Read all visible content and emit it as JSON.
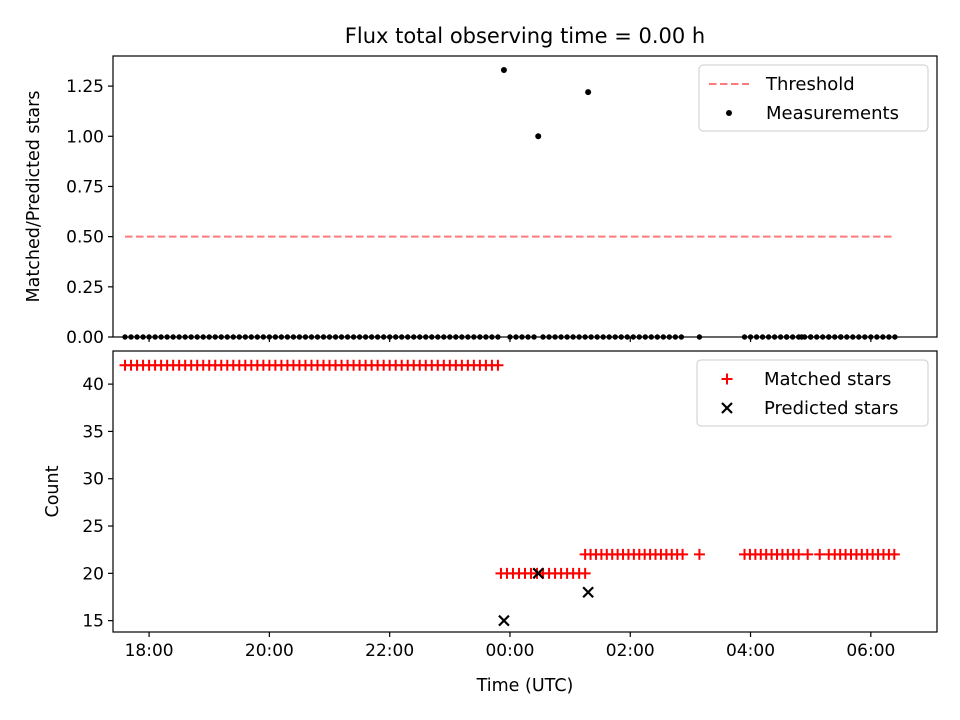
{
  "chart_data": [
    {
      "type": "scatter",
      "title": "Flux total observing time = 0.00 h",
      "xlabel": "",
      "ylabel": "Matched/Predicted stars",
      "xlim": [
        -6.6,
        7.1
      ],
      "ylim": [
        0,
        1.4
      ],
      "xticks": [
        -6,
        -4,
        -2,
        0,
        2,
        4,
        6
      ],
      "yticks": [
        0,
        0.25,
        0.5,
        0.75,
        1.0,
        1.25
      ],
      "ytick_labels": [
        "0.00",
        "0.25",
        "0.50",
        "0.75",
        "1.00",
        "1.25"
      ],
      "grid": false,
      "legend_position": "upper right",
      "series": [
        {
          "name": "Threshold",
          "style": "dashed-line",
          "color": "#ff7a7a",
          "x": [
            -6.4,
            6.4
          ],
          "y": [
            0.5,
            0.5
          ]
        },
        {
          "name": "Measurements",
          "style": "dot",
          "color": "#000000",
          "points": [
            [
              -0.1,
              1.33
            ],
            [
              0.47,
              1.0
            ],
            [
              1.3,
              1.22
            ]
          ],
          "zero_ranges": [
            [
              -6.4,
              -0.2
            ],
            [
              0.0,
              0.45
            ],
            [
              0.55,
              1.25
            ],
            [
              1.35,
              2.9
            ],
            [
              3.9,
              6.4
            ]
          ],
          "zero_singles": [
            3.15,
            4.6,
            4.85,
            5.0,
            5.3,
            5.5
          ]
        }
      ]
    },
    {
      "type": "scatter",
      "title": "",
      "xlabel": "Time (UTC)",
      "ylabel": "Count",
      "xlim": [
        -6.6,
        7.1
      ],
      "ylim": [
        13.8,
        43.5
      ],
      "xticks": [
        -6,
        -4,
        -2,
        0,
        2,
        4,
        6
      ],
      "xtick_labels": [
        "18:00",
        "20:00",
        "22:00",
        "00:00",
        "02:00",
        "04:00",
        "06:00"
      ],
      "yticks": [
        15,
        20,
        25,
        30,
        35,
        40
      ],
      "ytick_labels": [
        "15",
        "20",
        "25",
        "30",
        "35",
        "40"
      ],
      "grid": false,
      "legend_position": "upper right",
      "series": [
        {
          "name": "Matched stars",
          "style": "plus",
          "color": "#ff0000",
          "ranges": [
            {
              "from": -6.4,
              "to": -0.15,
              "value": 42,
              "step": 0.1
            },
            {
              "from": -0.15,
              "to": 1.25,
              "value": 20,
              "step": 0.1
            },
            {
              "from": 1.25,
              "to": 2.9,
              "value": 22,
              "step": 0.09
            },
            {
              "from": 3.9,
              "to": 4.8,
              "value": 22,
              "step": 0.09
            },
            {
              "from": 5.4,
              "to": 6.4,
              "value": 22,
              "step": 0.09
            }
          ],
          "singles": [
            [
              3.15,
              22
            ],
            [
              4.95,
              22
            ],
            [
              5.15,
              22
            ],
            [
              5.3,
              22
            ]
          ]
        },
        {
          "name": "Predicted stars",
          "style": "x",
          "color": "#000000",
          "points": [
            [
              -0.1,
              15
            ],
            [
              0.47,
              20
            ],
            [
              1.3,
              18
            ]
          ]
        }
      ]
    }
  ]
}
